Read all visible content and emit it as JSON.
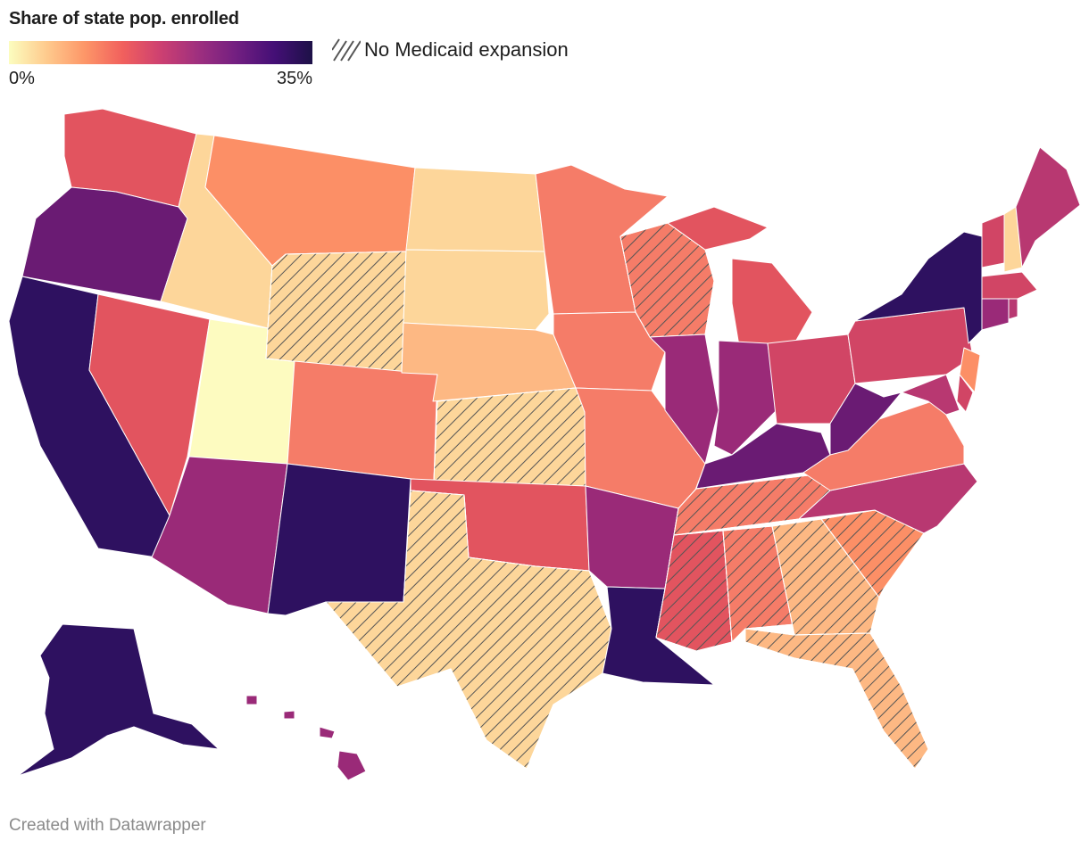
{
  "legend": {
    "title": "Share of state pop. enrolled",
    "min_label": "0%",
    "max_label": "35%",
    "scale_min": 0,
    "scale_max": 35,
    "gradient_stops": [
      "#fcfdbf",
      "#feca8d",
      "#fd9668",
      "#f1605d",
      "#cd4071",
      "#9e2f7f",
      "#721f81",
      "#440f76",
      "#1d1147"
    ],
    "hatch_label": "No Medicaid expansion"
  },
  "colors": {
    "very_light_yellow": "#fdfbc0",
    "pale_tan": "#fdd69a",
    "light_orange": "#fdb883",
    "orange": "#fc8f66",
    "coral": "#f57c68",
    "red_coral": "#e2545f",
    "magenta_red": "#d14565",
    "magenta": "#b83871",
    "purple_magenta": "#9a2a78",
    "purple": "#6a1b73",
    "dark_purple": "#2e1160",
    "hatch_stroke": "#555555"
  },
  "footer": {
    "credit": "Created with Datawrapper"
  }
}
